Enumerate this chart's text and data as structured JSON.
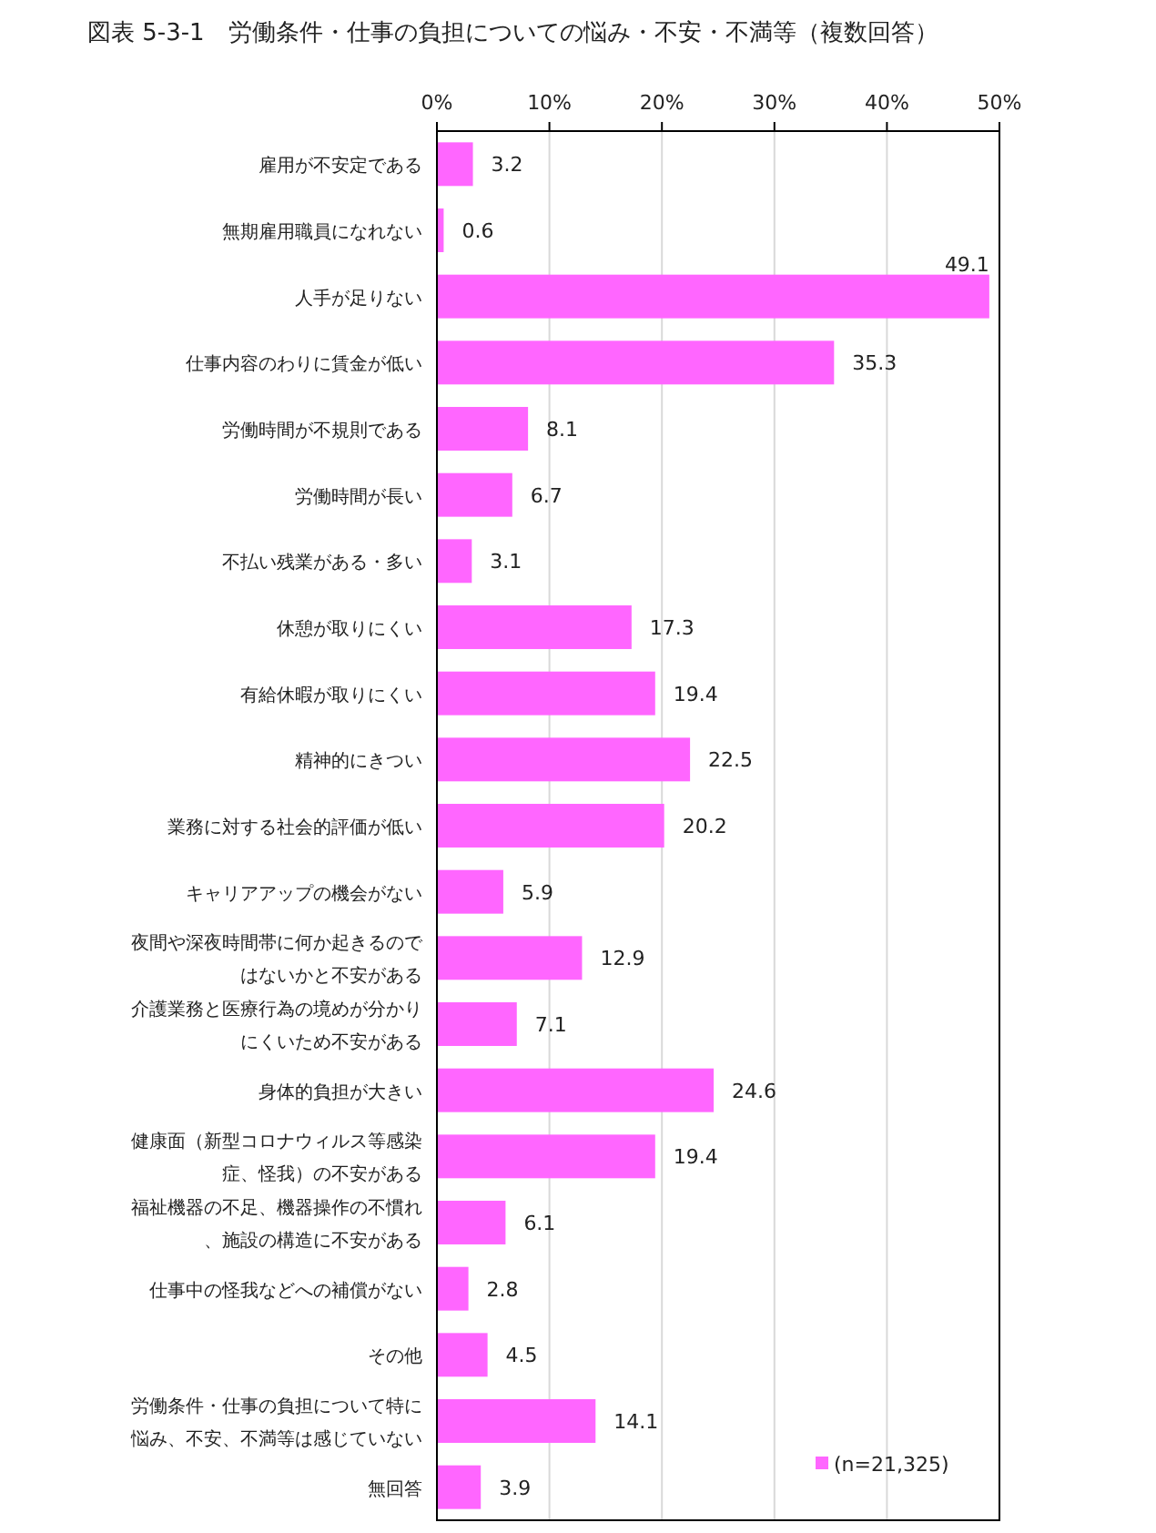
{
  "chart_data": {
    "type": "bar",
    "orientation": "horizontal",
    "title": "図表 5-3-1　労働条件・仕事の負担についての悩み・不安・不満等（複数回答）",
    "categories": [
      "雇用が不安定である",
      "無期雇用職員になれない",
      "人手が足りない",
      "仕事内容のわりに賃金が低い",
      "労働時間が不規則である",
      "労働時間が長い",
      "不払い残業がある・多い",
      "休憩が取りにくい",
      "有給休暇が取りにくい",
      "精神的にきつい",
      "業務に対する社会的評価が低い",
      "キャリアアップの機会がない",
      "夜間や深夜時間帯に何か起きるのではないかと不安がある",
      "介護業務と医療行為の境めが分かりにくいため不安がある",
      "身体的負担が大きい",
      "健康面（新型コロナウィルス等感染症、怪我）の不安がある",
      "福祉機器の不足、機器操作の不慣れ、施設の構造に不安がある",
      "仕事中の怪我などへの補償がない",
      "その他",
      "労働条件・仕事の負担について特に悩み、不安、不満等は感じていない",
      "無回答"
    ],
    "series": [
      {
        "name": "(n=21,325)",
        "color": "#ff66ff",
        "values": [
          3.2,
          0.6,
          49.1,
          35.3,
          8.1,
          6.7,
          3.1,
          17.3,
          19.4,
          22.5,
          20.2,
          5.9,
          12.9,
          7.1,
          24.6,
          19.4,
          6.1,
          2.8,
          4.5,
          14.1,
          3.9
        ]
      }
    ],
    "xlim": [
      0,
      50
    ],
    "xticks": [
      {
        "value": 0,
        "label": "0%"
      },
      {
        "value": 10,
        "label": "10%"
      },
      {
        "value": 20,
        "label": "20%"
      },
      {
        "value": 30,
        "label": "30%"
      },
      {
        "value": 40,
        "label": "40%"
      },
      {
        "value": 50,
        "label": "50%"
      }
    ],
    "grid": "x",
    "legend": "bottom right",
    "data_labels": true
  }
}
